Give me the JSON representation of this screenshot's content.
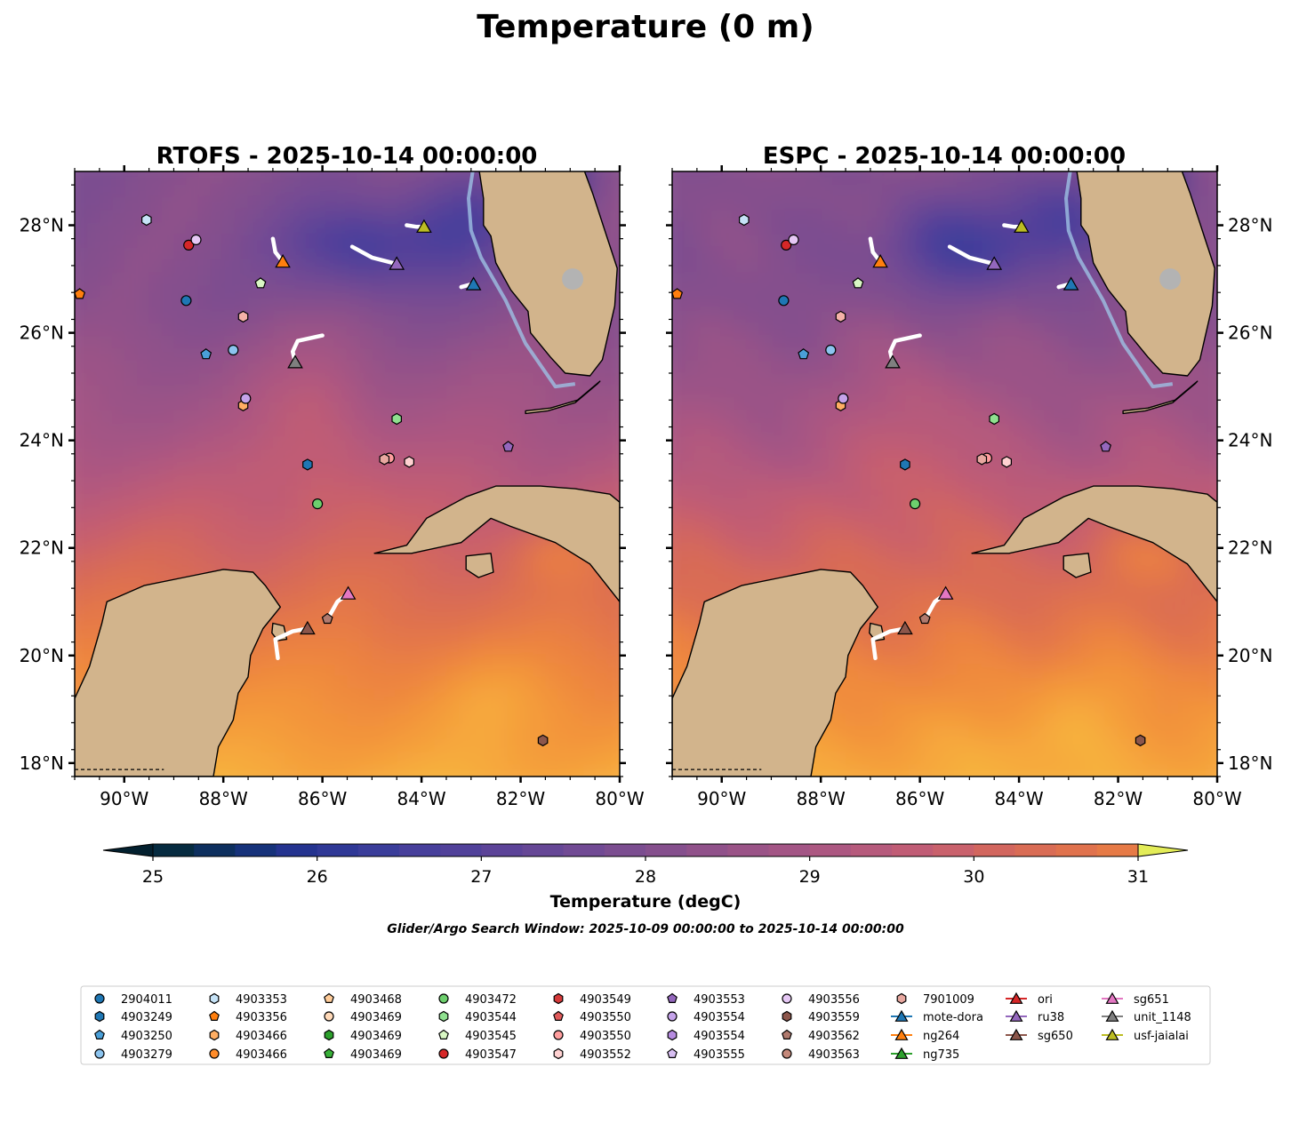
{
  "figure": {
    "title": "Temperature (0 m)",
    "search_window": "Glider/Argo Search Window: 2025-10-09 00:00:00 to 2025-10-14 00:00:00"
  },
  "chart_data": {
    "type": "heatmap",
    "panels": [
      {
        "title": "RTOFS - 2025-10-14 00:00:00"
      },
      {
        "title": "ESPC - 2025-10-14 00:00:00"
      }
    ],
    "xlim": [
      -91.0,
      -80.0
    ],
    "ylim": [
      17.75,
      29.0
    ],
    "x_ticks": [
      -90,
      -88,
      -86,
      -84,
      -82,
      -80
    ],
    "x_tick_labels": [
      "90°W",
      "88°W",
      "86°W",
      "84°W",
      "82°W",
      "80°W"
    ],
    "y_ticks": [
      18,
      20,
      22,
      24,
      26,
      28
    ],
    "y_tick_labels": [
      "18°N",
      "20°N",
      "22°N",
      "24°N",
      "26°N",
      "28°N"
    ],
    "colorbar": {
      "label": "Temperature (degC)",
      "min": 25,
      "max": 31,
      "step": 0.25,
      "ticks": [
        25,
        26,
        27,
        28,
        29,
        30,
        31
      ],
      "tick_labels": [
        "25",
        "26",
        "27",
        "28",
        "29",
        "30",
        "31"
      ],
      "extend": "both",
      "colors": [
        "#03202f",
        "#062b40",
        "#0d2f5e",
        "#16327a",
        "#24338f",
        "#2f3896",
        "#3a3d9a",
        "#473f9b",
        "#51419a",
        "#5c4398",
        "#664796",
        "#714a94",
        "#7b4d90",
        "#854f8d",
        "#90518a",
        "#9a5387",
        "#a35585",
        "#ac5781",
        "#b65a7c",
        "#c05c75",
        "#c9616c",
        "#d2665e",
        "#d96c55",
        "#e0724d",
        "#e67a46",
        "#ec8340",
        "#f08c3d",
        "#f3943b",
        "#f49d3a",
        "#f6a83c",
        "#f7b23e",
        "#f6c043",
        "#f5cb46",
        "#ecdb4b",
        "#e3ec58"
      ]
    },
    "legend": {
      "columns": [
        [
          "2904011",
          "4903249",
          "4903250",
          "4903279"
        ],
        [
          "4903353",
          "4903356",
          "4903466",
          "4903466"
        ],
        [
          "4903468",
          "4903469",
          "4903469",
          "4903469"
        ],
        [
          "4903472",
          "4903544",
          "4903545",
          "4903547"
        ],
        [
          "4903549",
          "4903550",
          "4903550",
          "4903552"
        ],
        [
          "4903553",
          "4903554",
          "4903554",
          "4903555"
        ],
        [
          "4903556",
          "4903559",
          "4903562",
          "4903563"
        ],
        [
          "7901009",
          "mote-dora",
          "ng264",
          "ng735"
        ],
        [
          "ori",
          "ru38",
          "sg650"
        ],
        [
          "sg651",
          "unit_1148",
          "usf-jaialai"
        ]
      ]
    },
    "argo_floats": [
      {
        "id": "2904011",
        "lon": -88.75,
        "lat": 26.6,
        "marker": "circle",
        "color": "#1f77b4"
      },
      {
        "id": "4903249",
        "lon": -86.3,
        "lat": 23.55,
        "marker": "hexagon",
        "color": "#1f77b4"
      },
      {
        "id": "4903250",
        "lon": -88.35,
        "lat": 25.6,
        "marker": "pentagon",
        "color": "#4a9fd8"
      },
      {
        "id": "4903279",
        "lon": -87.8,
        "lat": 25.68,
        "marker": "circle",
        "color": "#8cc4ef"
      },
      {
        "id": "4903353",
        "lon": -89.55,
        "lat": 28.1,
        "marker": "hexagon",
        "color": "#c6e3f7"
      },
      {
        "id": "4903356",
        "lon": -90.9,
        "lat": 26.72,
        "marker": "pentagon",
        "color": "#ff7f0e"
      },
      {
        "id": "4903466",
        "lon": -87.6,
        "lat": 24.65,
        "marker": "hexagon",
        "color": "#ffae63"
      },
      {
        "id": "4903468",
        "lon": -87.6,
        "lat": 26.3,
        "marker": "hexagon",
        "color": "#f5b2a8"
      },
      {
        "id": "4903472",
        "lon": -86.1,
        "lat": 22.82,
        "marker": "circle",
        "color": "#6dcf6d"
      },
      {
        "id": "4903544",
        "lon": -84.5,
        "lat": 24.4,
        "marker": "hexagon",
        "color": "#8fe08f"
      },
      {
        "id": "4903545",
        "lon": -87.25,
        "lat": 26.92,
        "marker": "pentagon",
        "color": "#d9f7c4"
      },
      {
        "id": "4903547",
        "lon": -88.7,
        "lat": 27.63,
        "marker": "circle",
        "color": "#d62728"
      },
      {
        "id": "4903550",
        "lon": -84.65,
        "lat": 23.67,
        "marker": "circle",
        "color": "#ff9e9e"
      },
      {
        "id": "4903552",
        "lon": -84.25,
        "lat": 23.6,
        "marker": "hexagon",
        "color": "#ffd1d1"
      },
      {
        "id": "4903553",
        "lon": -82.25,
        "lat": 23.88,
        "marker": "pentagon",
        "color": "#9467bd"
      },
      {
        "id": "4903554",
        "lon": -87.55,
        "lat": 24.78,
        "marker": "circle",
        "color": "#c5a3ea"
      },
      {
        "id": "4903556",
        "lon": -88.55,
        "lat": 27.73,
        "marker": "circle",
        "color": "#e6c8f5"
      },
      {
        "id": "4903559",
        "lon": -81.55,
        "lat": 18.42,
        "marker": "hexagon",
        "color": "#8c564b"
      },
      {
        "id": "4903562",
        "lon": -85.9,
        "lat": 20.68,
        "marker": "pentagon",
        "color": "#b07a6e"
      },
      {
        "id": "7901009",
        "lon": -84.75,
        "lat": 23.65,
        "marker": "hexagon",
        "color": "#e8a8a0"
      }
    ],
    "gliders": [
      {
        "id": "mote-dora",
        "lon": -82.95,
        "lat": 26.9,
        "color": "#1f77b4",
        "track": [
          [
            -83.2,
            26.85
          ],
          [
            -83.0,
            26.9
          ]
        ]
      },
      {
        "id": "ng264",
        "lon": -86.8,
        "lat": 27.32,
        "color": "#ff7f0e",
        "track": [
          [
            -87.0,
            27.75
          ],
          [
            -86.95,
            27.5
          ],
          [
            -86.8,
            27.32
          ]
        ]
      },
      {
        "id": "ru38",
        "lon": -84.5,
        "lat": 27.28,
        "color": "#9467bd",
        "track": [
          [
            -85.4,
            27.6
          ],
          [
            -85.0,
            27.4
          ],
          [
            -84.5,
            27.28
          ]
        ]
      },
      {
        "id": "sg650",
        "lon": -86.3,
        "lat": 20.5,
        "color": "#8c564b",
        "track": [
          [
            -86.9,
            19.95
          ],
          [
            -86.95,
            20.3
          ],
          [
            -86.6,
            20.45
          ],
          [
            -86.3,
            20.5
          ]
        ]
      },
      {
        "id": "sg651",
        "lon": -85.48,
        "lat": 21.15,
        "color": "#e377c2",
        "track": [
          [
            -85.85,
            20.75
          ],
          [
            -85.7,
            21.0
          ],
          [
            -85.48,
            21.15
          ]
        ]
      },
      {
        "id": "unit_1148",
        "lon": -86.55,
        "lat": 25.45,
        "color": "#7f7f7f",
        "track": [
          [
            -86.0,
            25.95
          ],
          [
            -86.5,
            25.85
          ],
          [
            -86.6,
            25.65
          ],
          [
            -86.55,
            25.45
          ]
        ]
      },
      {
        "id": "usf-jaialai",
        "lon": -83.95,
        "lat": 27.97,
        "color": "#bcbd22",
        "track": [
          [
            -84.3,
            28.0
          ],
          [
            -84.1,
            27.97
          ],
          [
            -83.95,
            27.97
          ]
        ]
      }
    ]
  }
}
